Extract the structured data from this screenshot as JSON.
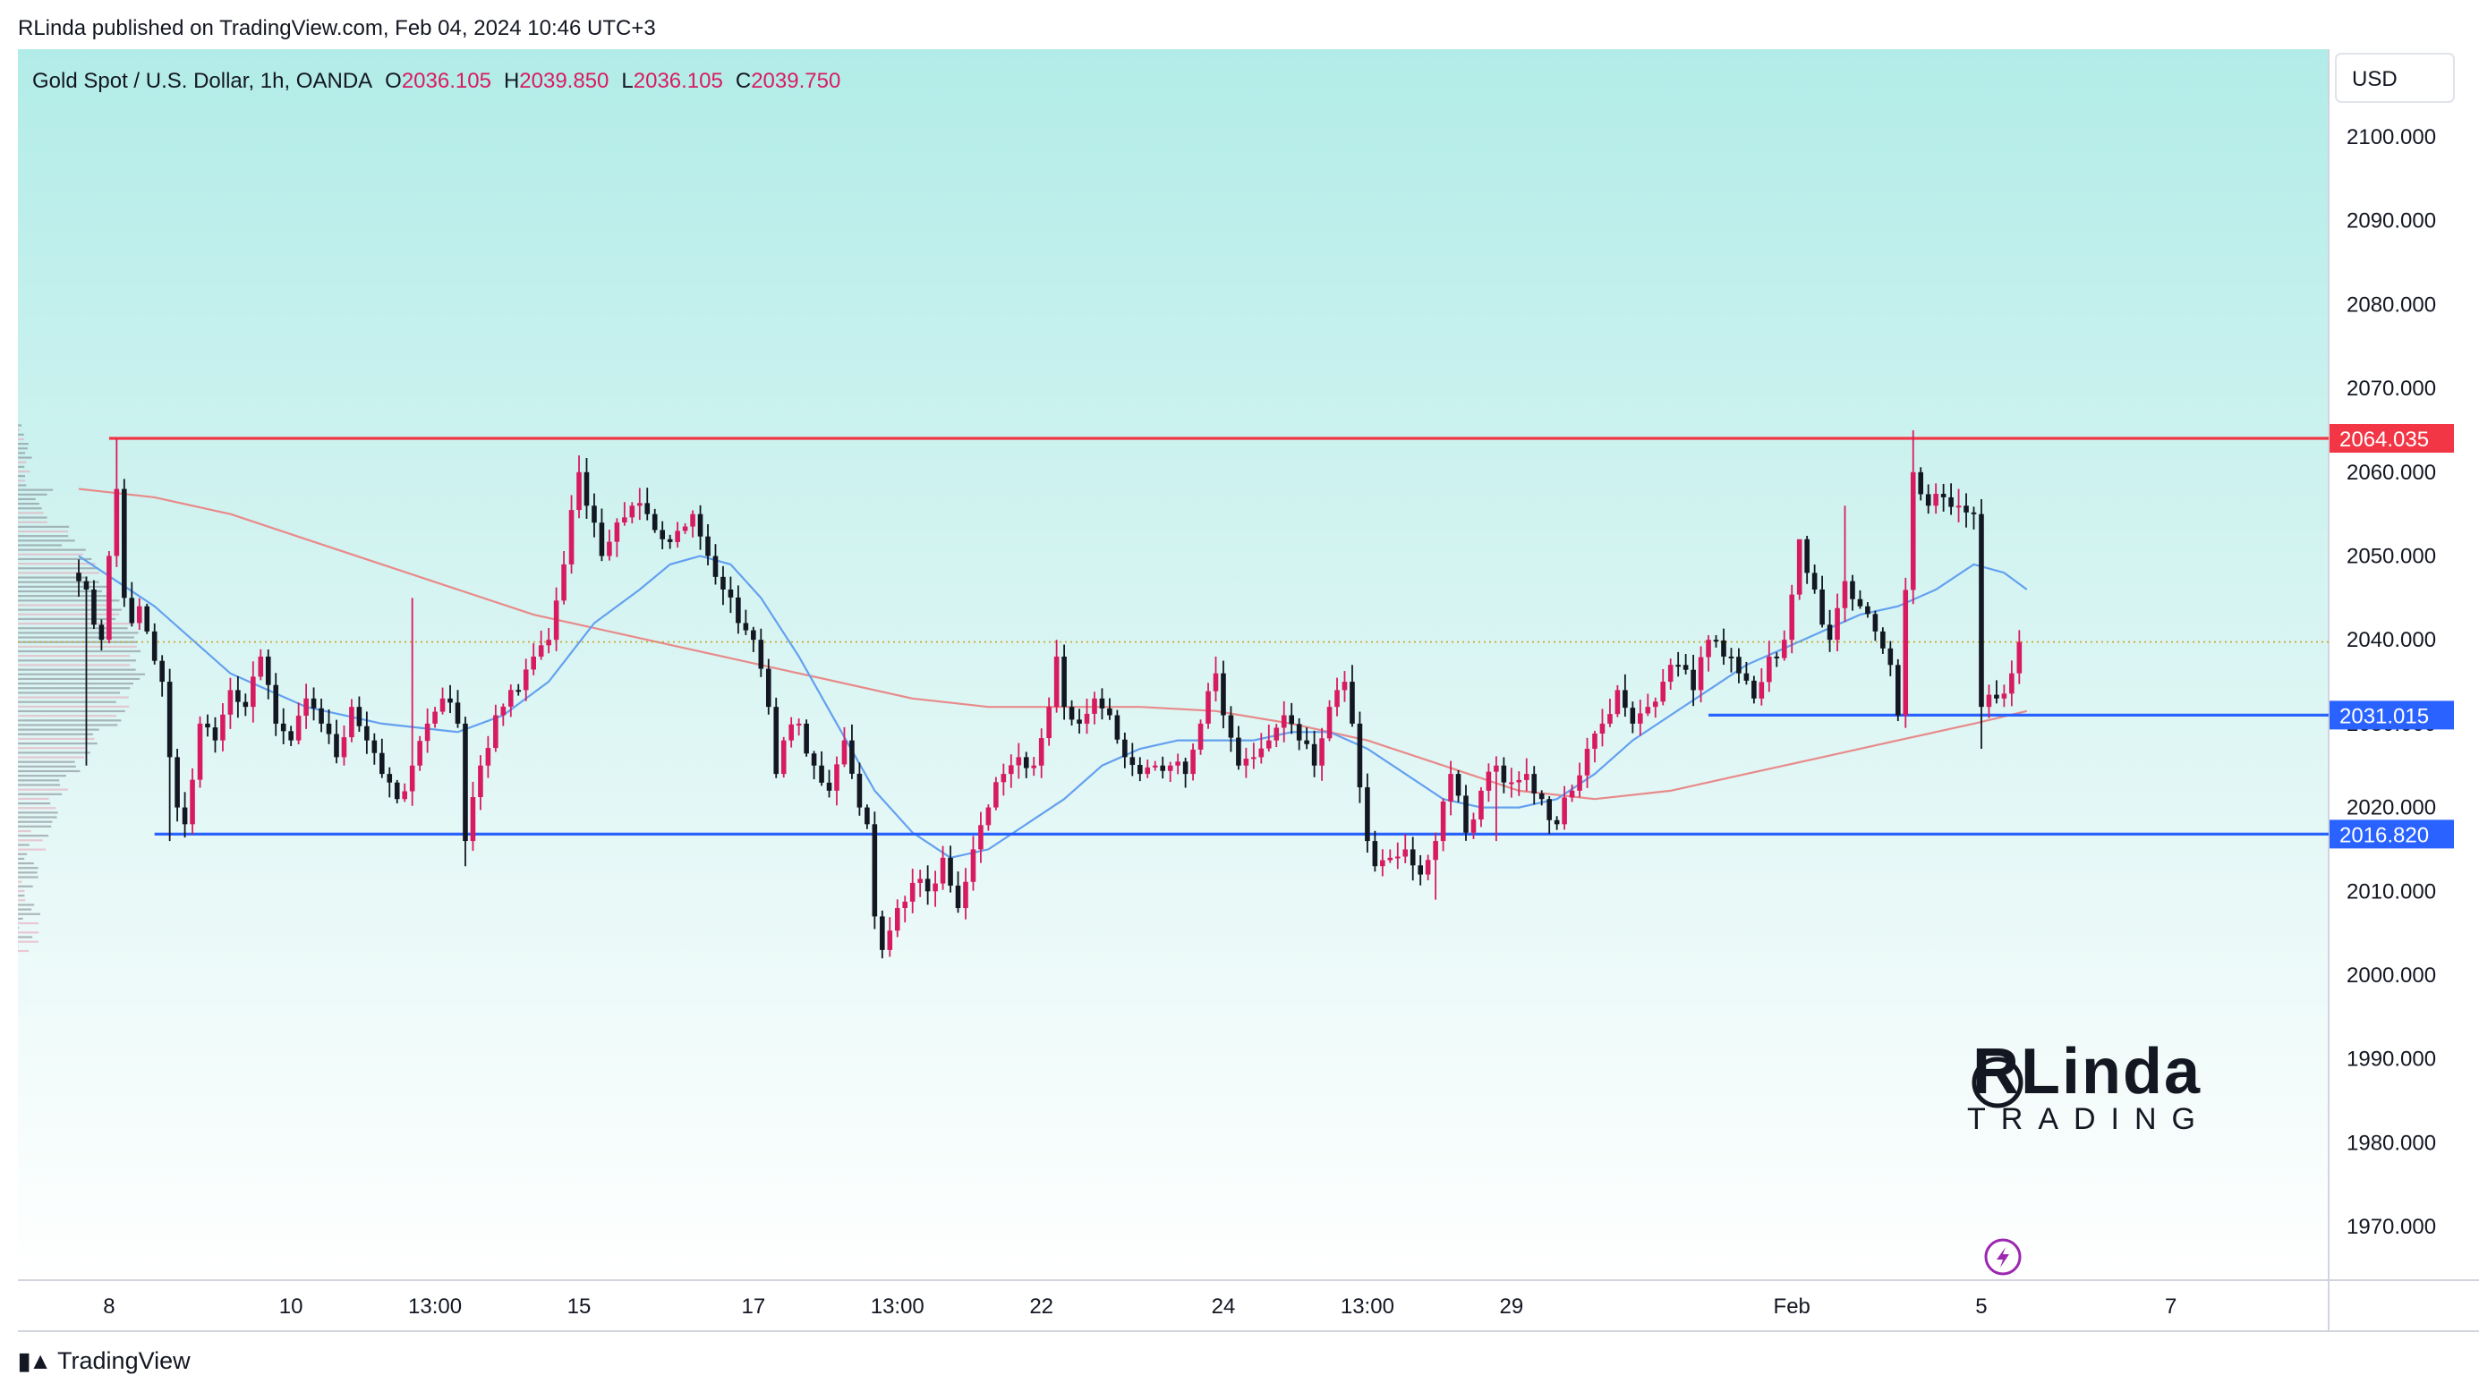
{
  "header": {
    "publisher": "RLinda published on TradingView.com, Feb 04, 2024 10:46 UTC+3"
  },
  "legend": {
    "symbol": "Gold Spot / U.S. Dollar, 1h, OANDA",
    "o_label": "O",
    "o_value": "2036.105",
    "h_label": "H",
    "h_value": "2039.850",
    "l_label": "L",
    "l_value": "2036.105",
    "c_label": "C",
    "c_value": "2039.750"
  },
  "footer": {
    "brand": "TradingView"
  },
  "watermark": {
    "line1": "RLinda",
    "line2": "TRADING"
  },
  "colors": {
    "background_top": "#b2ece8",
    "background_bottom": "#ffffff",
    "bull": "#d81b60",
    "bear": "#131722",
    "resistance": "#f23645",
    "support": "#2962ff",
    "ma_fast": "#64a0f0",
    "ma_slow": "#e88a8a",
    "price_line": "#c9a227"
  },
  "chart_data": {
    "type": "candlestick",
    "title": "Gold Spot / U.S. Dollar, 1h, OANDA",
    "currency": "USD",
    "ylim": [
      1962,
      2107
    ],
    "y_ticks": [
      "2100.000",
      "2090.000",
      "2080.000",
      "2070.000",
      "2060.000",
      "2050.000",
      "2040.000",
      "2030.000",
      "2020.000",
      "2010.000",
      "2000.000",
      "1990.000",
      "1980.000",
      "1970.000"
    ],
    "x_ticks": [
      {
        "label": "8",
        "bar": 4
      },
      {
        "label": "10",
        "bar": 28
      },
      {
        "label": "13:00",
        "bar": 47
      },
      {
        "label": "15",
        "bar": 66
      },
      {
        "label": "17",
        "bar": 89
      },
      {
        "label": "13:00",
        "bar": 108
      },
      {
        "label": "22",
        "bar": 127
      },
      {
        "label": "24",
        "bar": 151
      },
      {
        "label": "13:00",
        "bar": 170
      },
      {
        "label": "29",
        "bar": 189
      },
      {
        "label": "Feb",
        "bar": 226
      },
      {
        "label": "5",
        "bar": 251
      },
      {
        "label": "7",
        "bar": 276
      }
    ],
    "price_levels": [
      {
        "name": "resistance",
        "value": 2064.035,
        "label": "2064.035",
        "color": "#f23645"
      },
      {
        "name": "support-upper",
        "value": 2031.015,
        "label": "2031.015",
        "color": "#2962ff"
      },
      {
        "name": "support-lower",
        "value": 2016.82,
        "label": "2016.820",
        "color": "#2962ff"
      }
    ],
    "last_price": 2039.75,
    "anchors": [
      [
        0,
        2047
      ],
      [
        1,
        2046
      ],
      [
        3,
        2040
      ],
      [
        5,
        2058
      ],
      [
        6,
        2045
      ],
      [
        7,
        2042
      ],
      [
        8,
        2044
      ],
      [
        9,
        2041
      ],
      [
        11,
        2035
      ],
      [
        12,
        2026
      ],
      [
        13,
        2020
      ],
      [
        14,
        2018
      ],
      [
        16,
        2030
      ],
      [
        18,
        2028
      ],
      [
        20,
        2034
      ],
      [
        22,
        2032
      ],
      [
        24,
        2038
      ],
      [
        26,
        2030
      ],
      [
        28,
        2028
      ],
      [
        30,
        2033
      ],
      [
        32,
        2030
      ],
      [
        34,
        2026
      ],
      [
        36,
        2032
      ],
      [
        38,
        2028
      ],
      [
        40,
        2024
      ],
      [
        42,
        2021
      ],
      [
        44,
        2025
      ],
      [
        46,
        2030
      ],
      [
        48,
        2033
      ],
      [
        50,
        2030
      ],
      [
        51,
        2016
      ],
      [
        53,
        2025
      ],
      [
        55,
        2031
      ],
      [
        58,
        2034
      ],
      [
        60,
        2038
      ],
      [
        62,
        2040
      ],
      [
        64,
        2049
      ],
      [
        66,
        2060
      ],
      [
        67,
        2056
      ],
      [
        69,
        2050
      ],
      [
        71,
        2054
      ],
      [
        73,
        2056
      ],
      [
        75,
        2055
      ],
      [
        77,
        2052
      ],
      [
        79,
        2053
      ],
      [
        81,
        2055
      ],
      [
        83,
        2050
      ],
      [
        85,
        2046
      ],
      [
        87,
        2042
      ],
      [
        89,
        2040
      ],
      [
        91,
        2032
      ],
      [
        92,
        2024
      ],
      [
        93,
        2028
      ],
      [
        95,
        2030
      ],
      [
        97,
        2025
      ],
      [
        99,
        2022
      ],
      [
        101,
        2028
      ],
      [
        103,
        2020
      ],
      [
        104,
        2018
      ],
      [
        105,
        2007
      ],
      [
        106,
        2003
      ],
      [
        108,
        2008
      ],
      [
        110,
        2011
      ],
      [
        112,
        2010
      ],
      [
        114,
        2014
      ],
      [
        116,
        2008
      ],
      [
        118,
        2015
      ],
      [
        120,
        2020
      ],
      [
        122,
        2024
      ],
      [
        124,
        2026
      ],
      [
        126,
        2025
      ],
      [
        128,
        2032
      ],
      [
        129,
        2038
      ],
      [
        130,
        2032
      ],
      [
        132,
        2030
      ],
      [
        134,
        2033
      ],
      [
        136,
        2031
      ],
      [
        138,
        2026
      ],
      [
        140,
        2024
      ],
      [
        142,
        2025
      ],
      [
        144,
        2025
      ],
      [
        146,
        2024
      ],
      [
        148,
        2030
      ],
      [
        150,
        2036
      ],
      [
        151,
        2031
      ],
      [
        153,
        2025
      ],
      [
        155,
        2026
      ],
      [
        157,
        2028
      ],
      [
        159,
        2031
      ],
      [
        161,
        2028
      ],
      [
        163,
        2025
      ],
      [
        165,
        2032
      ],
      [
        167,
        2035
      ],
      [
        168,
        2030
      ],
      [
        170,
        2016
      ],
      [
        171,
        2013
      ],
      [
        173,
        2014
      ],
      [
        175,
        2015
      ],
      [
        177,
        2012
      ],
      [
        179,
        2016
      ],
      [
        181,
        2024
      ],
      [
        183,
        2017
      ],
      [
        185,
        2022
      ],
      [
        187,
        2025
      ],
      [
        189,
        2023
      ],
      [
        191,
        2024
      ],
      [
        193,
        2021
      ],
      [
        195,
        2018
      ],
      [
        197,
        2022
      ],
      [
        199,
        2027
      ],
      [
        201,
        2030
      ],
      [
        203,
        2034
      ],
      [
        205,
        2030
      ],
      [
        207,
        2032
      ],
      [
        209,
        2035
      ],
      [
        211,
        2037
      ],
      [
        213,
        2034
      ],
      [
        215,
        2040
      ],
      [
        217,
        2038
      ],
      [
        219,
        2036
      ],
      [
        221,
        2033
      ],
      [
        223,
        2038
      ],
      [
        225,
        2040
      ],
      [
        227,
        2052
      ],
      [
        229,
        2046
      ],
      [
        231,
        2040
      ],
      [
        233,
        2047
      ],
      [
        235,
        2044
      ],
      [
        237,
        2041
      ],
      [
        239,
        2037
      ],
      [
        240,
        2031
      ],
      [
        242,
        2060
      ],
      [
        244,
        2056
      ],
      [
        246,
        2057
      ],
      [
        248,
        2056
      ],
      [
        250,
        2055
      ],
      [
        251,
        2032
      ],
      [
        253,
        2033
      ],
      [
        255,
        2036
      ],
      [
        256,
        2039.75
      ]
    ],
    "wick_spikes": [
      {
        "bar": 1,
        "low": 2025
      },
      {
        "bar": 5,
        "high": 2064
      },
      {
        "bar": 12,
        "low": 2016
      },
      {
        "bar": 44,
        "high": 2045
      },
      {
        "bar": 51,
        "low": 2013
      },
      {
        "bar": 66,
        "high": 2062
      },
      {
        "bar": 106,
        "low": 2002
      },
      {
        "bar": 129,
        "high": 2040
      },
      {
        "bar": 150,
        "high": 2038
      },
      {
        "bar": 168,
        "high": 2037
      },
      {
        "bar": 179,
        "low": 2009
      },
      {
        "bar": 187,
        "low": 2016
      },
      {
        "bar": 227,
        "high": 2048
      },
      {
        "bar": 233,
        "high": 2056
      },
      {
        "bar": 242,
        "high": 2065
      },
      {
        "bar": 251,
        "low": 2027
      },
      {
        "bar": 248,
        "high": 2058
      }
    ],
    "ma_fast": [
      [
        0,
        2050
      ],
      [
        10,
        2044
      ],
      [
        20,
        2036
      ],
      [
        30,
        2032
      ],
      [
        40,
        2030
      ],
      [
        50,
        2029
      ],
      [
        56,
        2031
      ],
      [
        62,
        2035
      ],
      [
        68,
        2042
      ],
      [
        74,
        2046
      ],
      [
        78,
        2049
      ],
      [
        82,
        2050
      ],
      [
        86,
        2049
      ],
      [
        90,
        2045
      ],
      [
        95,
        2038
      ],
      [
        100,
        2030
      ],
      [
        105,
        2022
      ],
      [
        110,
        2017
      ],
      [
        115,
        2014
      ],
      [
        120,
        2015
      ],
      [
        125,
        2018
      ],
      [
        130,
        2021
      ],
      [
        135,
        2025
      ],
      [
        140,
        2027
      ],
      [
        145,
        2028
      ],
      [
        150,
        2028
      ],
      [
        155,
        2028
      ],
      [
        160,
        2029
      ],
      [
        165,
        2029
      ],
      [
        170,
        2027
      ],
      [
        175,
        2024
      ],
      [
        180,
        2021
      ],
      [
        185,
        2020
      ],
      [
        190,
        2020
      ],
      [
        195,
        2021
      ],
      [
        200,
        2024
      ],
      [
        205,
        2028
      ],
      [
        210,
        2031
      ],
      [
        215,
        2034
      ],
      [
        220,
        2037
      ],
      [
        225,
        2039
      ],
      [
        230,
        2041
      ],
      [
        235,
        2043
      ],
      [
        240,
        2044
      ],
      [
        245,
        2046
      ],
      [
        250,
        2049
      ],
      [
        254,
        2048
      ],
      [
        257,
        2046
      ]
    ],
    "ma_slow": [
      [
        0,
        2058
      ],
      [
        10,
        2057
      ],
      [
        20,
        2055
      ],
      [
        30,
        2052
      ],
      [
        40,
        2049
      ],
      [
        50,
        2046
      ],
      [
        60,
        2043
      ],
      [
        70,
        2041
      ],
      [
        80,
        2039
      ],
      [
        90,
        2037
      ],
      [
        100,
        2035
      ],
      [
        110,
        2033
      ],
      [
        120,
        2032
      ],
      [
        130,
        2032
      ],
      [
        140,
        2032
      ],
      [
        150,
        2031.5
      ],
      [
        160,
        2030
      ],
      [
        170,
        2028
      ],
      [
        180,
        2025
      ],
      [
        190,
        2022
      ],
      [
        200,
        2021
      ],
      [
        210,
        2022
      ],
      [
        220,
        2024
      ],
      [
        230,
        2026
      ],
      [
        240,
        2028
      ],
      [
        250,
        2030
      ],
      [
        257,
        2031.5
      ]
    ]
  }
}
